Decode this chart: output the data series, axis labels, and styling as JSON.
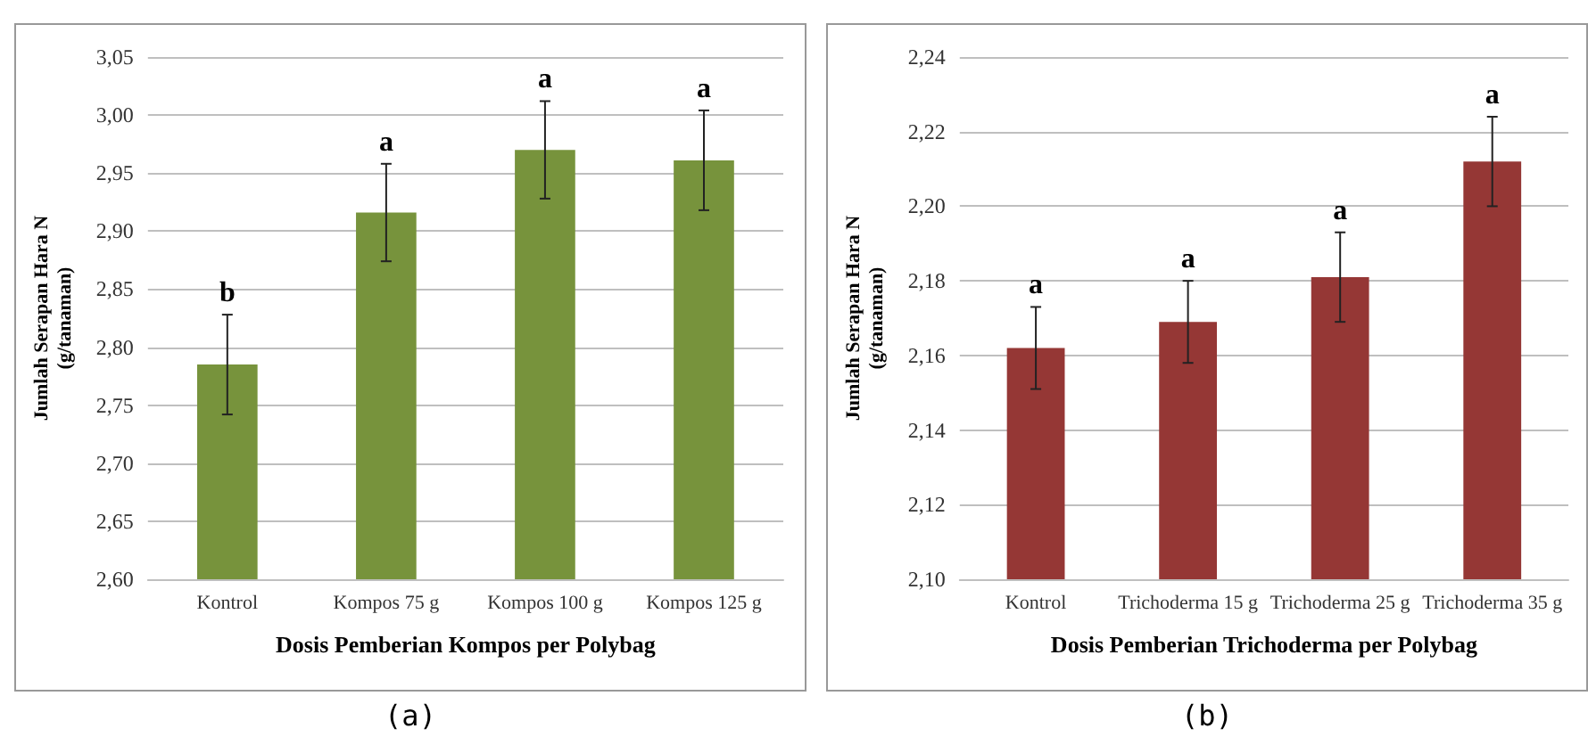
{
  "chart_data": [
    {
      "type": "bar",
      "xlabel": "Dosis Pemberian Kompos per Polybag",
      "ylabel": "Jumlah Serapan Hara N\n(g/tanaman)",
      "categories": [
        "Kontrol",
        "Kompos 75 g",
        "Kompos 100 g",
        "Kompos 125 g"
      ],
      "values": [
        2.785,
        2.916,
        2.97,
        2.961
      ],
      "errors": [
        0.043,
        0.042,
        0.042,
        0.043
      ],
      "color": "#77933c",
      "ylim": [
        2.6,
        3.05
      ],
      "yticks": [
        {
          "value": 2.6,
          "label": "2,60"
        },
        {
          "value": 2.65,
          "label": "2,65"
        },
        {
          "value": 2.7,
          "label": "2,70"
        },
        {
          "value": 2.75,
          "label": "2,75"
        },
        {
          "value": 2.8,
          "label": "2,80"
        },
        {
          "value": 2.85,
          "label": "2,85"
        },
        {
          "value": 2.9,
          "label": "2,90"
        },
        {
          "value": 2.95,
          "label": "2,95"
        },
        {
          "value": 3.0,
          "label": "3,00"
        },
        {
          "value": 3.05,
          "label": "3,05"
        }
      ],
      "grid": "y",
      "annotations": [
        {
          "text": "b",
          "x": "Kontrol",
          "y": 2.828
        },
        {
          "text": "a",
          "x": "Kompos 75 g",
          "y": 2.958
        },
        {
          "text": "a",
          "x": "Kompos 100 g",
          "y": 3.012
        },
        {
          "text": "a",
          "x": "Kompos 125 g",
          "y": 3.004
        },
        "(a)"
      ]
    },
    {
      "type": "bar",
      "xlabel": "Dosis Pemberian Trichoderma per Polybag",
      "ylabel": "Jumlah Serapan Hara N\n(g/tanaman)",
      "categories": [
        "Kontrol",
        "Trichoderma 15 g",
        "Trichoderma 25 g",
        "Trichoderma 35 g"
      ],
      "values": [
        2.162,
        2.169,
        2.181,
        2.212
      ],
      "errors": [
        0.011,
        0.011,
        0.012,
        0.012
      ],
      "color": "#953735",
      "ylim": [
        2.1,
        2.24
      ],
      "yticks": [
        {
          "value": 2.1,
          "label": "2,10"
        },
        {
          "value": 2.12,
          "label": "2,12"
        },
        {
          "value": 2.14,
          "label": "2,14"
        },
        {
          "value": 2.16,
          "label": "2,16"
        },
        {
          "value": 2.18,
          "label": "2,18"
        },
        {
          "value": 2.2,
          "label": "2,20"
        },
        {
          "value": 2.22,
          "label": "2,22"
        },
        {
          "value": 2.24,
          "label": "2,24"
        }
      ],
      "grid": "y",
      "annotations": [
        {
          "text": "a",
          "x": "Kontrol",
          "y": 2.173
        },
        {
          "text": "a",
          "x": "Trichoderma 15 g",
          "y": 2.18
        },
        {
          "text": "a",
          "x": "Trichoderma 25 g",
          "y": 2.193
        },
        {
          "text": "a",
          "x": "Trichoderma 35 g",
          "y": 2.224
        },
        "(b)"
      ]
    }
  ]
}
